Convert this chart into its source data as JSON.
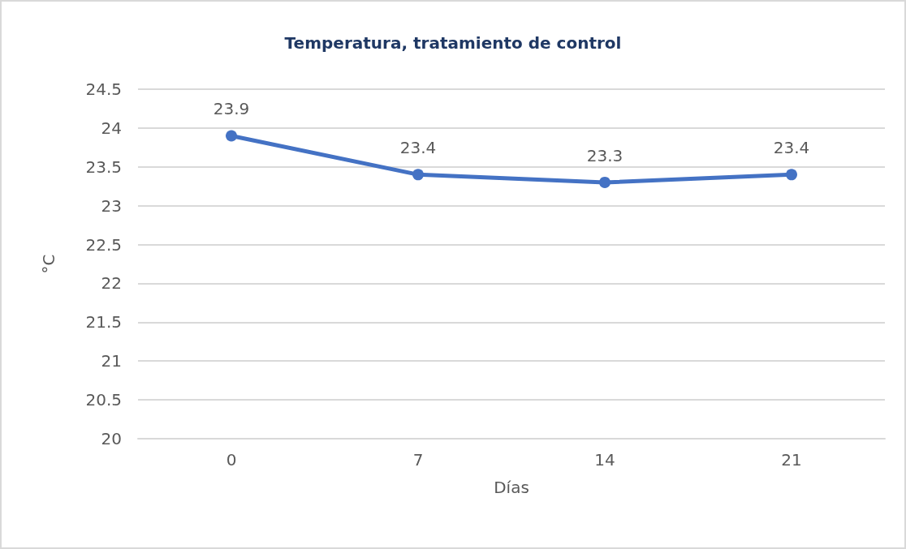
{
  "chart_data": {
    "type": "line",
    "title": "Temperatura, tratamiento de control",
    "xlabel": "Días",
    "ylabel": "°C",
    "categories": [
      "0",
      "7",
      "14",
      "21"
    ],
    "values": [
      23.9,
      23.4,
      23.3,
      23.4
    ],
    "color": "#4472c4",
    "ylim": [
      20,
      24.5
    ],
    "yticks": [
      20,
      20.5,
      21,
      21.5,
      22,
      22.5,
      23,
      23.5,
      24,
      24.5
    ],
    "grid": "y",
    "data_labels": true,
    "marker": "circle"
  }
}
